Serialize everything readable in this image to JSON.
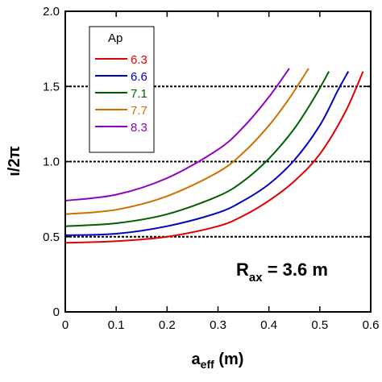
{
  "chart_data": {
    "type": "line",
    "xlabel_main": "a",
    "xlabel_sub": "eff",
    "xlabel_unit": " (m)",
    "ylabel": "ι/2π",
    "xlim": [
      0,
      0.6
    ],
    "ylim": [
      0,
      2.0
    ],
    "x_ticks": [
      0,
      0.1,
      0.2,
      0.3,
      0.4,
      0.5,
      0.6
    ],
    "y_ticks": [
      0,
      0.5,
      1.0,
      1.5,
      2.0
    ],
    "x_tick_labels": [
      "0",
      "0.1",
      "0.2",
      "0.3",
      "0.4",
      "0.5",
      "0.6"
    ],
    "y_tick_labels": [
      "0",
      "0.5",
      "1.0",
      "1.5",
      "2.0"
    ],
    "reference_lines": [
      0.5,
      1.0,
      1.5
    ],
    "legend_title": "Ap",
    "legend_position": "top-left",
    "annotation": {
      "main": "R",
      "sub": "ax",
      "rest": " = 3.6 m"
    },
    "series": [
      {
        "name": "6.3",
        "color": "#e00000",
        "x": [
          0,
          0.1,
          0.2,
          0.3,
          0.35,
          0.4,
          0.45,
          0.5,
          0.55,
          0.585
        ],
        "y": [
          0.46,
          0.47,
          0.5,
          0.57,
          0.64,
          0.74,
          0.87,
          1.05,
          1.33,
          1.6
        ]
      },
      {
        "name": "6.6",
        "color": "#0000c0",
        "x": [
          0,
          0.1,
          0.2,
          0.3,
          0.35,
          0.4,
          0.45,
          0.5,
          0.535,
          0.556
        ],
        "y": [
          0.51,
          0.52,
          0.57,
          0.66,
          0.74,
          0.85,
          1.01,
          1.24,
          1.47,
          1.6
        ]
      },
      {
        "name": "7.1",
        "color": "#006000",
        "x": [
          0,
          0.1,
          0.2,
          0.3,
          0.35,
          0.4,
          0.45,
          0.49,
          0.518
        ],
        "y": [
          0.57,
          0.59,
          0.65,
          0.77,
          0.87,
          1.02,
          1.22,
          1.43,
          1.6
        ]
      },
      {
        "name": "7.7",
        "color": "#d07000",
        "x": [
          0,
          0.1,
          0.2,
          0.3,
          0.35,
          0.4,
          0.44,
          0.478
        ],
        "y": [
          0.65,
          0.68,
          0.77,
          0.93,
          1.06,
          1.24,
          1.42,
          1.62
        ]
      },
      {
        "name": "8.3",
        "color": "#9000c0",
        "x": [
          0,
          0.1,
          0.2,
          0.3,
          0.35,
          0.4,
          0.44
        ],
        "y": [
          0.74,
          0.78,
          0.89,
          1.08,
          1.23,
          1.43,
          1.62
        ]
      }
    ]
  }
}
